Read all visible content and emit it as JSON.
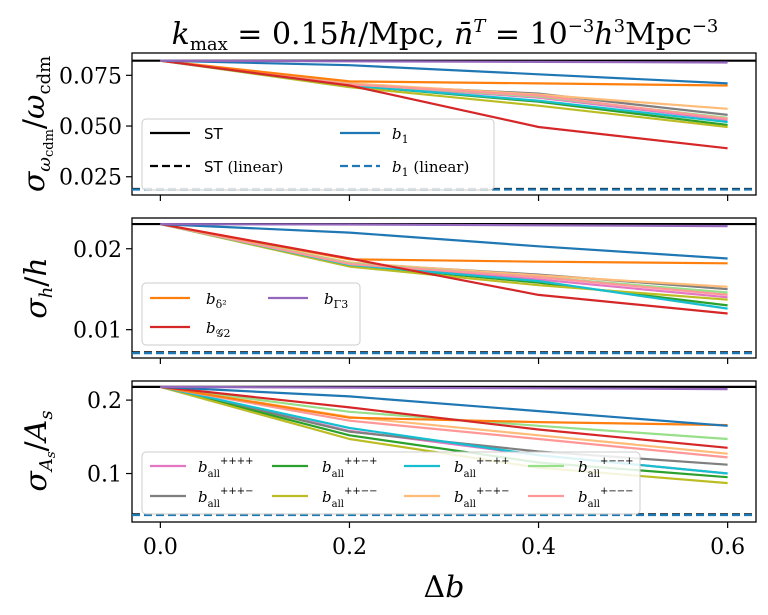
{
  "chart_data": {
    "title": "k_max = 0.15h/Mpc, n̄^T = 10^-3 h^3 Mpc^-3",
    "xlabel": "Δb",
    "x": [
      0.0,
      0.2,
      0.4,
      0.6
    ],
    "xticks": [
      "0.0",
      "0.2",
      "0.4",
      "0.6"
    ],
    "xlim": [
      -0.03,
      0.63
    ],
    "colors": {
      "b1": "#1f77b4",
      "bd2": "#ff7f0e",
      "bG2": "#d62728",
      "bG3": "#9467bd",
      "pppp": "#e377c2",
      "pppm": "#7f7f7f",
      "ppmp": "#2ca02c",
      "ppmm": "#bcbd22",
      "pmpp": "#17becf",
      "pmpm": "#ffbb78",
      "pmmp": "#98df8a",
      "pmmm": "#ff9896"
    },
    "panels": [
      {
        "type": "line",
        "ylabel": "σ_ωcdm/ω_cdm",
        "ylim": [
          0.016,
          0.086
        ],
        "yticks": [
          0.025,
          0.05,
          0.075
        ],
        "ytick_labels": [
          "0.025",
          "0.050",
          "0.075"
        ],
        "hlines": [
          {
            "key": "ST",
            "value": 0.0822,
            "style": "solid",
            "color": "#000000"
          },
          {
            "key": "ST_linear",
            "value": 0.019,
            "style": "dashed",
            "color": "#000000"
          },
          {
            "key": "b1_linear",
            "value": 0.0187,
            "style": "dashed",
            "color": "#1f77b4"
          }
        ],
        "series": [
          {
            "key": "pppp",
            "values": [
              0.0822,
              0.0704,
              0.064,
              0.053
            ]
          },
          {
            "key": "pppm",
            "values": [
              0.0822,
              0.0704,
              0.066,
              0.0555
            ]
          },
          {
            "key": "ppmp",
            "values": [
              0.0822,
              0.07,
              0.062,
              0.0505
            ]
          },
          {
            "key": "ppmm",
            "values": [
              0.0822,
              0.0692,
              0.06,
              0.0495
            ]
          },
          {
            "key": "pmpp",
            "values": [
              0.0822,
              0.07,
              0.0625,
              0.052
            ]
          },
          {
            "key": "pmpm",
            "values": [
              0.0822,
              0.071,
              0.0655,
              0.0585
            ]
          },
          {
            "key": "pmmp",
            "values": [
              0.0822,
              0.0706,
              0.0645,
              0.054
            ]
          },
          {
            "key": "pmmm",
            "values": [
              0.0822,
              0.0705,
              0.065,
              0.0535
            ]
          },
          {
            "key": "bd2",
            "values": [
              0.0822,
              0.072,
              0.071,
              0.07
            ]
          },
          {
            "key": "bG2",
            "values": [
              0.0822,
              0.07,
              0.0495,
              0.039
            ]
          },
          {
            "key": "b1",
            "values": [
              0.0822,
              0.08,
              0.0755,
              0.071
            ]
          },
          {
            "key": "bG3",
            "values": [
              0.0822,
              0.0819,
              0.0816,
              0.0813
            ]
          }
        ],
        "legend": {
          "placement": "lower-left",
          "entries": [
            {
              "key": "ST",
              "label": "ST",
              "style": "solid",
              "color": "#000000"
            },
            {
              "key": "b1",
              "label": "b1",
              "style": "solid",
              "color": "#1f77b4"
            },
            {
              "key": "ST_linear",
              "label": "ST",
              "suffix": "(linear)",
              "style": "dashed",
              "color": "#000000"
            },
            {
              "key": "b1_linear",
              "label": "b1",
              "suffix": "(linear)",
              "style": "dashed",
              "color": "#1f77b4"
            }
          ]
        }
      },
      {
        "type": "line",
        "ylabel": "σ_h/h",
        "ylim": [
          0.0065,
          0.0238
        ],
        "yticks": [
          0.01,
          0.02
        ],
        "ytick_labels": [
          "0.01",
          "0.02"
        ],
        "hlines": [
          {
            "key": "ST",
            "value": 0.02305,
            "style": "solid",
            "color": "#000000"
          },
          {
            "key": "ST_linear",
            "value": 0.0072,
            "style": "dashed",
            "color": "#000000"
          },
          {
            "key": "b1_linear",
            "value": 0.0071,
            "style": "dashed",
            "color": "#1f77b4"
          }
        ],
        "series": [
          {
            "key": "pppp",
            "values": [
              0.02305,
              0.0182,
              0.0162,
              0.014
            ]
          },
          {
            "key": "pppm",
            "values": [
              0.02305,
              0.0182,
              0.0168,
              0.015
            ]
          },
          {
            "key": "ppmp",
            "values": [
              0.02305,
              0.018,
              0.0158,
              0.013
            ]
          },
          {
            "key": "ppmm",
            "values": [
              0.02305,
              0.0178,
              0.0155,
              0.0137
            ]
          },
          {
            "key": "pmpp",
            "values": [
              0.02305,
              0.018,
              0.016,
              0.0126
            ]
          },
          {
            "key": "pmpm",
            "values": [
              0.02305,
              0.0183,
              0.0167,
              0.0153
            ]
          },
          {
            "key": "pmmp",
            "values": [
              0.02305,
              0.0182,
              0.0165,
              0.0146
            ]
          },
          {
            "key": "pmmm",
            "values": [
              0.02305,
              0.0181,
              0.0165,
              0.0143
            ]
          },
          {
            "key": "bd2",
            "values": [
              0.02305,
              0.0187,
              0.0184,
              0.0182
            ]
          },
          {
            "key": "bG2",
            "values": [
              0.02305,
              0.0188,
              0.0143,
              0.012
            ]
          },
          {
            "key": "b1",
            "values": [
              0.02305,
              0.022,
              0.0203,
              0.0188
            ]
          },
          {
            "key": "bG3",
            "values": [
              0.02305,
              0.023,
              0.0229,
              0.0228
            ]
          }
        ],
        "legend": {
          "placement": "lower-left",
          "entries": [
            {
              "key": "bd2",
              "label": "b_δ²",
              "style": "solid",
              "color": "#ff7f0e"
            },
            {
              "key": "bG3",
              "label": "b_Γ3",
              "style": "solid",
              "color": "#9467bd"
            },
            {
              "key": "bG2",
              "label": "b_G2",
              "style": "solid",
              "color": "#d62728"
            }
          ]
        }
      },
      {
        "type": "line",
        "ylabel": "σ_As/A_s",
        "ylim": [
          0.034,
          0.226
        ],
        "yticks": [
          0.1,
          0.2
        ],
        "ytick_labels": [
          "0.1",
          "0.2"
        ],
        "hlines": [
          {
            "key": "ST",
            "value": 0.218,
            "style": "solid",
            "color": "#000000"
          },
          {
            "key": "ST_linear",
            "value": 0.0445,
            "style": "dashed",
            "color": "#000000"
          },
          {
            "key": "b1_linear",
            "value": 0.0435,
            "style": "dashed",
            "color": "#1f77b4"
          }
        ],
        "series": [
          {
            "key": "pppp",
            "values": [
              0.218,
              0.158,
              0.125,
              0.1
            ]
          },
          {
            "key": "pppm",
            "values": [
              0.218,
              0.157,
              0.13,
              0.112
            ]
          },
          {
            "key": "ppmp",
            "values": [
              0.218,
              0.152,
              0.115,
              0.095
            ]
          },
          {
            "key": "ppmm",
            "values": [
              0.218,
              0.147,
              0.108,
              0.087
            ]
          },
          {
            "key": "pmpp",
            "values": [
              0.218,
              0.162,
              0.125,
              0.1
            ]
          },
          {
            "key": "pmpm",
            "values": [
              0.218,
              0.177,
              0.152,
              0.127
            ]
          },
          {
            "key": "pmmp",
            "values": [
              0.218,
              0.184,
              0.165,
              0.147
            ]
          },
          {
            "key": "pmmm",
            "values": [
              0.218,
              0.172,
              0.147,
              0.122
            ]
          },
          {
            "key": "bd2",
            "values": [
              0.218,
              0.176,
              0.17,
              0.166
            ]
          },
          {
            "key": "bG2",
            "values": [
              0.218,
              0.19,
              0.16,
              0.135
            ]
          },
          {
            "key": "b1",
            "values": [
              0.218,
              0.205,
              0.185,
              0.165
            ]
          },
          {
            "key": "bG3",
            "values": [
              0.218,
              0.217,
              0.216,
              0.215
            ]
          }
        ],
        "legend": {
          "placement": "lower-left",
          "entries": [
            {
              "key": "pppp",
              "label": "b_all^{++++}",
              "style": "solid",
              "color": "#e377c2"
            },
            {
              "key": "ppmp",
              "label": "b_all^{++-+}",
              "style": "solid",
              "color": "#2ca02c"
            },
            {
              "key": "pmpp",
              "label": "b_all^{+-++}",
              "style": "solid",
              "color": "#17becf"
            },
            {
              "key": "pmmp",
              "label": "b_all^{+--+}",
              "style": "solid",
              "color": "#98df8a"
            },
            {
              "key": "pppm",
              "label": "b_all^{+++-}",
              "style": "solid",
              "color": "#7f7f7f"
            },
            {
              "key": "ppmm",
              "label": "b_all^{++--}",
              "style": "solid",
              "color": "#bcbd22"
            },
            {
              "key": "pmpm",
              "label": "b_all^{+-+-}",
              "style": "solid",
              "color": "#ffbb78"
            },
            {
              "key": "pmmm",
              "label": "b_all^{+---}",
              "style": "solid",
              "color": "#ff9896"
            }
          ]
        }
      }
    ]
  }
}
